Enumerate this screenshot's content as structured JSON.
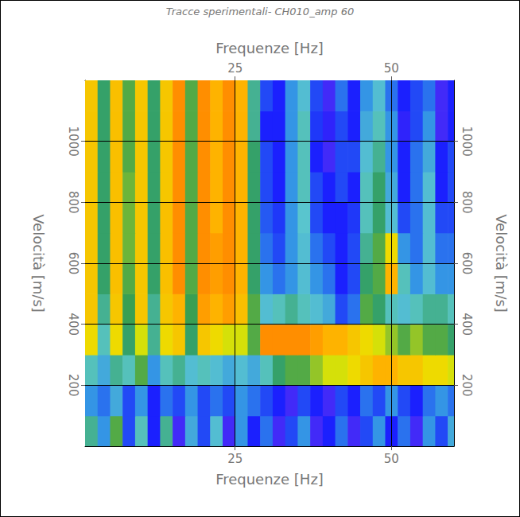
{
  "chart_data": {
    "type": "heatmap",
    "title": "Tracce sperimentali- CH010_amp 60",
    "x_label": "Frequenze [Hz]",
    "y_label": "Velocità [m/s]",
    "xlim": [
      1,
      60
    ],
    "xticks": [
      25,
      50
    ],
    "ylim": [
      0,
      1200
    ],
    "yticks": [
      200,
      400,
      600,
      800,
      1000
    ],
    "grid": true,
    "value_range": [
      0,
      1
    ],
    "x": [
      2,
      4,
      6,
      8,
      10,
      12,
      14,
      16,
      18,
      20,
      22,
      24,
      26,
      28,
      30,
      32,
      34,
      36,
      38,
      40,
      42,
      44,
      46,
      48,
      50,
      52,
      54,
      56,
      58,
      60
    ],
    "y": [
      50,
      150,
      250,
      350,
      450,
      550,
      650,
      750,
      850,
      950,
      1050,
      1150
    ],
    "cells": [
      [
        0.5,
        0.3,
        0.6,
        0.2,
        0.45,
        0.15,
        0.5,
        0.1,
        0.35,
        0.2,
        0.4,
        0.1,
        0.3,
        0.15,
        0.25,
        0.1,
        0.2,
        0.3,
        0.1,
        0.15,
        0.25,
        0.1,
        0.2,
        0.3,
        0.15,
        0.25,
        0.1,
        0.3,
        0.2,
        0.35
      ],
      [
        0.3,
        0.25,
        0.35,
        0.2,
        0.3,
        0.15,
        0.25,
        0.2,
        0.3,
        0.2,
        0.25,
        0.2,
        0.3,
        0.25,
        0.2,
        0.15,
        0.1,
        0.2,
        0.15,
        0.1,
        0.2,
        0.15,
        0.25,
        0.2,
        0.3,
        0.2,
        0.15,
        0.25,
        0.3,
        0.25
      ],
      [
        0.45,
        0.35,
        0.5,
        0.45,
        0.6,
        0.3,
        0.45,
        0.5,
        0.4,
        0.45,
        0.4,
        0.35,
        0.4,
        0.35,
        0.45,
        0.55,
        0.6,
        0.6,
        0.65,
        0.7,
        0.7,
        0.75,
        0.8,
        0.85,
        0.85,
        0.8,
        0.8,
        0.75,
        0.75,
        0.7
      ],
      [
        0.75,
        0.45,
        0.75,
        0.55,
        0.7,
        0.5,
        0.75,
        0.8,
        0.55,
        0.8,
        0.75,
        0.7,
        0.7,
        0.6,
        0.9,
        0.9,
        0.9,
        0.9,
        0.88,
        0.85,
        0.85,
        0.8,
        0.75,
        0.7,
        0.65,
        0.6,
        0.65,
        0.6,
        0.6,
        0.55
      ],
      [
        0.8,
        0.5,
        0.8,
        0.58,
        0.8,
        0.5,
        0.8,
        0.85,
        0.58,
        0.88,
        0.85,
        0.88,
        0.82,
        0.6,
        0.4,
        0.45,
        0.5,
        0.45,
        0.4,
        0.35,
        0.2,
        0.25,
        0.6,
        0.55,
        0.45,
        0.4,
        0.45,
        0.5,
        0.5,
        0.45
      ],
      [
        0.8,
        0.55,
        0.82,
        0.6,
        0.8,
        0.55,
        0.82,
        0.9,
        0.6,
        0.9,
        0.88,
        0.9,
        0.85,
        0.55,
        0.3,
        0.25,
        0.3,
        0.4,
        0.3,
        0.25,
        0.15,
        0.2,
        0.55,
        0.6,
        0.85,
        0.45,
        0.3,
        0.4,
        0.3,
        0.3
      ],
      [
        0.8,
        0.55,
        0.82,
        0.62,
        0.8,
        0.55,
        0.82,
        0.9,
        0.6,
        0.9,
        0.88,
        0.9,
        0.85,
        0.55,
        0.25,
        0.2,
        0.3,
        0.4,
        0.25,
        0.2,
        0.15,
        0.2,
        0.5,
        0.6,
        0.75,
        0.3,
        0.25,
        0.4,
        0.25,
        0.25
      ],
      [
        0.8,
        0.55,
        0.82,
        0.62,
        0.8,
        0.55,
        0.82,
        0.9,
        0.6,
        0.9,
        0.85,
        0.9,
        0.85,
        0.55,
        0.22,
        0.18,
        0.3,
        0.42,
        0.2,
        0.15,
        0.15,
        0.18,
        0.45,
        0.55,
        0.4,
        0.2,
        0.25,
        0.4,
        0.2,
        0.2
      ],
      [
        0.8,
        0.55,
        0.82,
        0.62,
        0.8,
        0.55,
        0.8,
        0.9,
        0.6,
        0.9,
        0.85,
        0.9,
        0.85,
        0.55,
        0.2,
        0.15,
        0.3,
        0.45,
        0.2,
        0.15,
        0.2,
        0.15,
        0.45,
        0.55,
        0.35,
        0.15,
        0.25,
        0.4,
        0.15,
        0.2
      ],
      [
        0.8,
        0.55,
        0.82,
        0.6,
        0.8,
        0.55,
        0.8,
        0.9,
        0.6,
        0.9,
        0.85,
        0.9,
        0.85,
        0.55,
        0.2,
        0.15,
        0.3,
        0.45,
        0.15,
        0.1,
        0.2,
        0.2,
        0.4,
        0.5,
        0.3,
        0.15,
        0.25,
        0.35,
        0.15,
        0.2
      ],
      [
        0.8,
        0.55,
        0.82,
        0.6,
        0.8,
        0.55,
        0.8,
        0.9,
        0.6,
        0.9,
        0.85,
        0.9,
        0.85,
        0.5,
        0.15,
        0.15,
        0.3,
        0.45,
        0.18,
        0.12,
        0.2,
        0.15,
        0.35,
        0.45,
        0.3,
        0.12,
        0.2,
        0.3,
        0.1,
        0.15
      ],
      [
        0.8,
        0.55,
        0.82,
        0.6,
        0.8,
        0.55,
        0.8,
        0.9,
        0.6,
        0.9,
        0.85,
        0.9,
        0.85,
        0.5,
        0.2,
        0.15,
        0.3,
        0.4,
        0.2,
        0.1,
        0.25,
        0.15,
        0.3,
        0.4,
        0.25,
        0.15,
        0.2,
        0.25,
        0.1,
        0.15
      ]
    ]
  }
}
